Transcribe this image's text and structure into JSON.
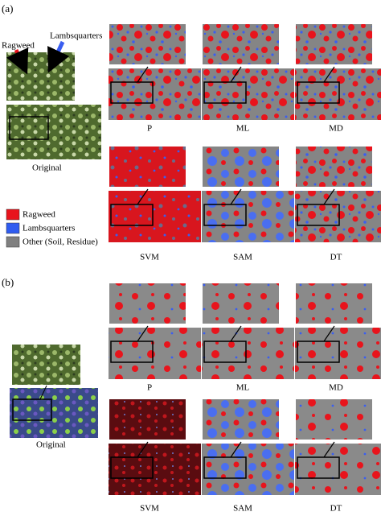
{
  "panels": [
    {
      "label": "(a)",
      "original": {
        "label": "Original",
        "annotations": [
          "Ragweed",
          "Lambsquarters"
        ]
      },
      "methods": [
        "P",
        "ML",
        "MD",
        "SVM",
        "SAM",
        "DT"
      ]
    },
    {
      "label": "(b)",
      "original": {
        "label": "Original"
      },
      "methods": [
        "P",
        "ML",
        "MD",
        "SVM",
        "SAM",
        "DT"
      ]
    }
  ],
  "legend": [
    {
      "label": "Ragweed",
      "color": "#e8141c"
    },
    {
      "label": "Lambsquarters",
      "color": "#2f5cf0"
    },
    {
      "label": "Other (Soil, Residue)",
      "color": "#808080"
    }
  ]
}
